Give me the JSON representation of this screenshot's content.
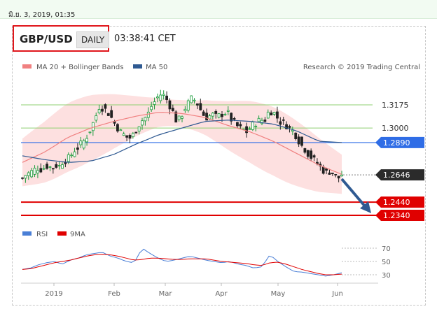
{
  "timestamp": "มิ.ย. 3, 2019, 01:35",
  "header": {
    "pair": "GBP/USD",
    "period": "DAILY",
    "time": "03:38:41 CET"
  },
  "legend": {
    "ma20_label": "MA 20 + Bollinger Bands",
    "ma50_label": "MA 50",
    "credit": "Research © 2019 Trading Central"
  },
  "rsi_legend": {
    "rsi_label": "RSI",
    "ma_label": "9MA"
  },
  "colors": {
    "ma20": "#f08080",
    "ma50": "#2f5a92",
    "band": "#fde0e0",
    "up": "#1a9b3a",
    "down": "#222222",
    "support": "#e00000",
    "pivot": "#2f6de6",
    "resistance": "#8fcf70",
    "rsi": "#4a7fd6",
    "rsi_ma": "#e00000",
    "arrow": "#2f5a92"
  },
  "chart_data": [
    {
      "type": "candlestick",
      "x_labels": [
        "2019",
        "Feb",
        "Mar",
        "Apr",
        "May",
        "Jun"
      ],
      "ylim": [
        1.22,
        1.34
      ],
      "current_price": "1.2646",
      "levels": [
        {
          "value": "1.3175",
          "kind": "resistance"
        },
        {
          "value": "1.3000",
          "kind": "resistance"
        },
        {
          "value": "1.2890",
          "kind": "pivot"
        },
        {
          "value": "1.2440",
          "kind": "support"
        },
        {
          "value": "1.2340",
          "kind": "support"
        }
      ],
      "price_path": [
        1.262,
        1.265,
        1.266,
        1.268,
        1.27,
        1.269,
        1.27,
        1.272,
        1.269,
        1.272,
        1.271,
        1.275,
        1.276,
        1.278,
        1.283,
        1.285,
        1.288,
        1.291,
        1.296,
        1.302,
        1.309,
        1.317,
        1.315,
        1.313,
        1.309,
        1.304,
        1.3,
        1.296,
        1.294,
        1.292,
        1.294,
        1.299,
        1.304,
        1.307,
        1.309,
        1.316,
        1.32,
        1.324,
        1.326,
        1.323,
        1.318,
        1.312,
        1.305,
        1.307,
        1.314,
        1.318,
        1.322,
        1.321,
        1.317,
        1.311,
        1.308,
        1.309,
        1.31,
        1.308,
        1.31,
        1.312,
        1.311,
        1.306,
        1.303,
        1.3,
        1.299,
        1.297,
        1.3,
        1.303,
        1.305,
        1.306,
        1.306,
        1.312,
        1.313,
        1.31,
        1.305,
        1.304,
        1.302,
        1.299,
        1.297,
        1.292,
        1.287,
        1.284,
        1.28,
        1.277,
        1.274,
        1.271,
        1.268,
        1.266,
        1.268,
        1.264,
        1.262,
        1.265
      ],
      "ma20_path": [
        1.274,
        1.282,
        1.293,
        1.3,
        1.305,
        1.309,
        1.312,
        1.311,
        1.308,
        1.302,
        1.297,
        1.29,
        1.281,
        1.272,
        1.265
      ],
      "ma50_path": [
        1.279,
        1.276,
        1.274,
        1.275,
        1.28,
        1.288,
        1.295,
        1.3,
        1.305,
        1.306,
        1.305,
        1.303,
        1.298,
        1.29,
        1.289
      ]
    },
    {
      "type": "line",
      "title": "RSI",
      "yticks": [
        "70",
        "50",
        "30"
      ],
      "ylim": [
        20,
        80
      ],
      "rsi_path": [
        38,
        40,
        45,
        48,
        50,
        46,
        52,
        55,
        60,
        62,
        64,
        58,
        55,
        50,
        48,
        70,
        62,
        55,
        50,
        52,
        55,
        58,
        55,
        52,
        50,
        48,
        50,
        46,
        44,
        40,
        42,
        60,
        50,
        42,
        35,
        34,
        32,
        30,
        28,
        30,
        33
      ],
      "rsi_ma_path": [
        38,
        39,
        42,
        45,
        48,
        50,
        52,
        55,
        58,
        60,
        61,
        60,
        58,
        55,
        52,
        53,
        55,
        55,
        54,
        53,
        53,
        54,
        54,
        54,
        52,
        50,
        49,
        48,
        47,
        45,
        44,
        48,
        49,
        46,
        42,
        38,
        35,
        32,
        30,
        30,
        31
      ]
    }
  ]
}
